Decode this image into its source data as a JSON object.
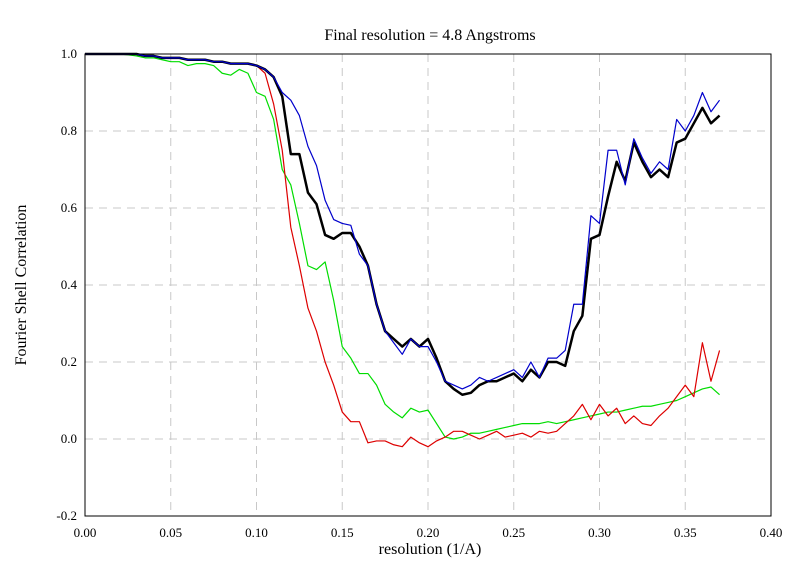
{
  "chart_data": {
    "type": "line",
    "title": "Final resolution =   4.8 Angstroms",
    "x_label": "resolution (1/A)",
    "y_label": "Fourier Shell Correlation",
    "grid": true,
    "xlim": [
      0,
      0.4
    ],
    "ylim": [
      -0.2,
      1.0
    ],
    "xticks": [
      {
        "value": 0,
        "label": "0.00"
      },
      0.05,
      {
        "value": 0.1,
        "label": "0.10"
      },
      0.15,
      {
        "value": 0.2,
        "label": "0.20"
      },
      0.25,
      {
        "value": 0.3,
        "label": "0.30"
      },
      0.35,
      {
        "value": 0.4,
        "label": "0.40"
      }
    ],
    "yticks": [
      -0.2,
      {
        "value": 0,
        "label": "0.0"
      },
      0.2,
      0.4,
      0.6,
      0.8,
      {
        "value": 1,
        "label": "1.0"
      }
    ],
    "x": [
      0,
      0.005,
      0.01,
      0.015,
      0.02,
      0.025,
      0.03,
      0.035,
      0.04,
      0.045,
      0.05,
      0.055,
      0.06,
      0.065,
      0.07,
      0.075,
      0.08,
      0.085,
      0.09,
      0.095,
      0.1,
      0.105,
      0.11,
      0.115,
      0.12,
      0.125,
      0.13,
      0.135,
      0.14,
      0.145,
      0.15,
      0.155,
      0.16,
      0.165,
      0.17,
      0.175,
      0.18,
      0.185,
      0.19,
      0.195,
      0.2,
      0.205,
      0.21,
      0.215,
      0.22,
      0.225,
      0.23,
      0.235,
      0.24,
      0.245,
      0.25,
      0.255,
      0.26,
      0.265,
      0.27,
      0.275,
      0.28,
      0.285,
      0.29,
      0.295,
      0.3,
      0.305,
      0.31,
      0.315,
      0.32,
      0.325,
      0.33,
      0.335,
      0.34,
      0.345,
      0.35,
      0.355,
      0.36,
      0.365,
      0.37
    ],
    "series": [
      {
        "color": "#00dd00",
        "width": 1.2,
        "values": [
          1,
          1,
          1,
          1,
          1,
          0.998,
          0.995,
          0.99,
          0.99,
          0.985,
          0.98,
          0.98,
          0.97,
          0.975,
          0.975,
          0.97,
          0.95,
          0.945,
          0.96,
          0.95,
          0.9,
          0.89,
          0.83,
          0.7,
          0.66,
          0.56,
          0.45,
          0.44,
          0.46,
          0.36,
          0.24,
          0.21,
          0.17,
          0.17,
          0.14,
          0.09,
          0.07,
          0.055,
          0.08,
          0.07,
          0.075,
          0.04,
          0.005,
          0,
          0.005,
          0.015,
          0.015,
          0.02,
          0.025,
          0.03,
          0.035,
          0.04,
          0.04,
          0.04,
          0.045,
          0.04,
          0.045,
          0.05,
          0.055,
          0.06,
          0.065,
          0.07,
          0.07,
          0.075,
          0.08,
          0.085,
          0.085,
          0.09,
          0.095,
          0.1,
          0.11,
          0.12,
          0.13,
          0.135,
          0.115
        ]
      },
      {
        "color": "#dd0000",
        "width": 1.2,
        "values": [
          1,
          1,
          1,
          1,
          1,
          1,
          1,
          0.995,
          0.995,
          0.99,
          0.99,
          0.99,
          0.985,
          0.985,
          0.985,
          0.98,
          0.98,
          0.975,
          0.975,
          0.975,
          0.97,
          0.95,
          0.87,
          0.75,
          0.55,
          0.45,
          0.34,
          0.28,
          0.2,
          0.14,
          0.07,
          0.045,
          0.045,
          -0.01,
          -0.005,
          -0.005,
          -0.015,
          -0.02,
          0.005,
          -0.01,
          -0.02,
          -0.005,
          0.005,
          0.02,
          0.02,
          0.01,
          0,
          0.01,
          0.02,
          0.005,
          0.01,
          0.015,
          0.005,
          0.02,
          0.015,
          0.02,
          0.04,
          0.06,
          0.09,
          0.05,
          0.09,
          0.06,
          0.08,
          0.04,
          0.06,
          0.04,
          0.035,
          0.06,
          0.08,
          0.11,
          0.14,
          0.11,
          0.25,
          0.15,
          0.23
        ]
      },
      {
        "color": "#000000",
        "width": 2.5,
        "values": [
          1,
          1,
          1,
          1,
          1,
          1,
          1,
          0.995,
          0.995,
          0.99,
          0.99,
          0.99,
          0.985,
          0.985,
          0.985,
          0.98,
          0.98,
          0.975,
          0.975,
          0.975,
          0.97,
          0.96,
          0.94,
          0.89,
          0.74,
          0.74,
          0.64,
          0.61,
          0.53,
          0.52,
          0.535,
          0.535,
          0.5,
          0.45,
          0.35,
          0.28,
          0.26,
          0.24,
          0.26,
          0.24,
          0.26,
          0.21,
          0.15,
          0.13,
          0.115,
          0.12,
          0.14,
          0.15,
          0.15,
          0.16,
          0.17,
          0.15,
          0.18,
          0.16,
          0.2,
          0.2,
          0.19,
          0.28,
          0.32,
          0.52,
          0.53,
          0.63,
          0.72,
          0.67,
          0.77,
          0.72,
          0.68,
          0.7,
          0.68,
          0.77,
          0.78,
          0.82,
          0.86,
          0.82,
          0.84
        ]
      },
      {
        "color": "#0000cc",
        "width": 1.2,
        "values": [
          1,
          1,
          1,
          1,
          1,
          1,
          1,
          0.995,
          0.995,
          0.99,
          0.99,
          0.99,
          0.985,
          0.985,
          0.985,
          0.98,
          0.98,
          0.975,
          0.975,
          0.975,
          0.97,
          0.96,
          0.94,
          0.9,
          0.88,
          0.84,
          0.76,
          0.71,
          0.62,
          0.57,
          0.56,
          0.555,
          0.48,
          0.45,
          0.35,
          0.28,
          0.25,
          0.22,
          0.26,
          0.24,
          0.24,
          0.2,
          0.15,
          0.14,
          0.13,
          0.14,
          0.16,
          0.15,
          0.16,
          0.17,
          0.18,
          0.16,
          0.2,
          0.16,
          0.21,
          0.21,
          0.23,
          0.35,
          0.35,
          0.58,
          0.56,
          0.75,
          0.75,
          0.66,
          0.78,
          0.73,
          0.69,
          0.72,
          0.7,
          0.83,
          0.8,
          0.84,
          0.9,
          0.85,
          0.88
        ]
      }
    ]
  }
}
